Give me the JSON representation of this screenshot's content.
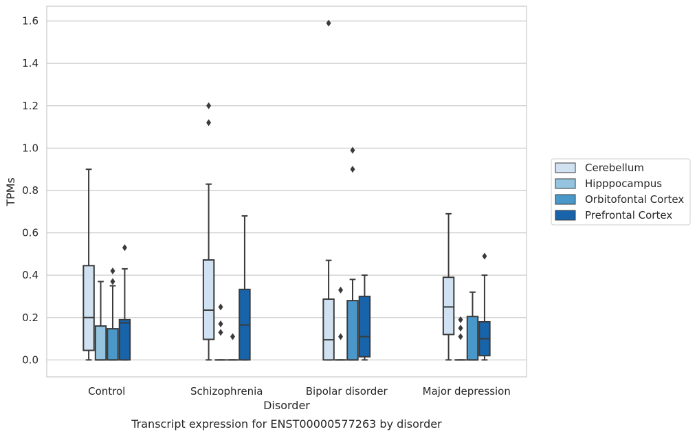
{
  "chart_data": {
    "type": "boxplot",
    "title": "Transcript expression for ENST00000577263 by disorder",
    "xlabel": "Disorder",
    "ylabel": "TPMs",
    "ylim": [
      -0.08,
      1.67
    ],
    "yticks": [
      0.0,
      0.2,
      0.4,
      0.6,
      0.8,
      1.0,
      1.2,
      1.4,
      1.6
    ],
    "ytick_labels": [
      "0.0",
      "0.2",
      "0.4",
      "0.6",
      "0.8",
      "1.0",
      "1.2",
      "1.4",
      "1.6"
    ],
    "grid": "horizontal",
    "legend_placement": "right",
    "categories": [
      "Control",
      "Schizophrenia",
      "Bipolar disorder",
      "Major depression"
    ],
    "series": [
      {
        "name": "Cerebellum",
        "color": "#d0e1f2",
        "boxes": [
          {
            "q1": 0.045,
            "median": 0.2,
            "q3": 0.445,
            "whislo": 0.0,
            "whishi": 0.9,
            "fliers": []
          },
          {
            "q1": 0.097,
            "median": 0.235,
            "q3": 0.472,
            "whislo": 0.0,
            "whishi": 0.83,
            "fliers": [
              1.12,
              1.2
            ]
          },
          {
            "q1": 0.0,
            "median": 0.095,
            "q3": 0.287,
            "whislo": 0.0,
            "whishi": 0.47,
            "fliers": [
              1.59
            ]
          },
          {
            "q1": 0.12,
            "median": 0.25,
            "q3": 0.39,
            "whislo": 0.0,
            "whishi": 0.69,
            "fliers": []
          }
        ]
      },
      {
        "name": "Hipppocampus",
        "color": "#94c4df",
        "boxes": [
          {
            "q1": 0.0,
            "median": 0.0,
            "q3": 0.16,
            "whislo": 0.0,
            "whishi": 0.37,
            "fliers": []
          },
          {
            "q1": 0.0,
            "median": 0.0,
            "q3": 0.0,
            "whislo": 0.0,
            "whishi": 0.0,
            "fliers": [
              0.13,
              0.17,
              0.25
            ]
          },
          {
            "q1": 0.0,
            "median": 0.0,
            "q3": 0.0,
            "whislo": 0.0,
            "whishi": 0.0,
            "fliers": [
              0.11,
              0.33
            ]
          },
          {
            "q1": 0.0,
            "median": 0.0,
            "q3": 0.0,
            "whislo": 0.0,
            "whishi": 0.0,
            "fliers": [
              0.11,
              0.15,
              0.19
            ]
          }
        ]
      },
      {
        "name": "Orbitofontal Cortex",
        "color": "#4a98c9",
        "boxes": [
          {
            "q1": 0.0,
            "median": 0.0,
            "q3": 0.147,
            "whislo": 0.0,
            "whishi": 0.35,
            "fliers": [
              0.37,
              0.42
            ]
          },
          {
            "q1": 0.0,
            "median": 0.0,
            "q3": 0.0,
            "whislo": 0.0,
            "whishi": 0.0,
            "fliers": [
              0.11
            ]
          },
          {
            "q1": 0.0,
            "median": 0.0,
            "q3": 0.28,
            "whislo": 0.0,
            "whishi": 0.38,
            "fliers": [
              0.9,
              0.99
            ]
          },
          {
            "q1": 0.0,
            "median": 0.0,
            "q3": 0.205,
            "whislo": 0.0,
            "whishi": 0.32,
            "fliers": []
          }
        ]
      },
      {
        "name": "Prefrontal Cortex",
        "color": "#1764ab",
        "boxes": [
          {
            "q1": 0.0,
            "median": 0.175,
            "q3": 0.19,
            "whislo": 0.0,
            "whishi": 0.43,
            "fliers": [
              0.53
            ]
          },
          {
            "q1": 0.0,
            "median": 0.165,
            "q3": 0.333,
            "whislo": 0.0,
            "whishi": 0.68,
            "fliers": []
          },
          {
            "q1": 0.015,
            "median": 0.11,
            "q3": 0.3,
            "whislo": 0.0,
            "whishi": 0.4,
            "fliers": []
          },
          {
            "q1": 0.02,
            "median": 0.1,
            "q3": 0.18,
            "whislo": 0.0,
            "whishi": 0.4,
            "fliers": [
              0.49
            ]
          }
        ]
      }
    ]
  }
}
